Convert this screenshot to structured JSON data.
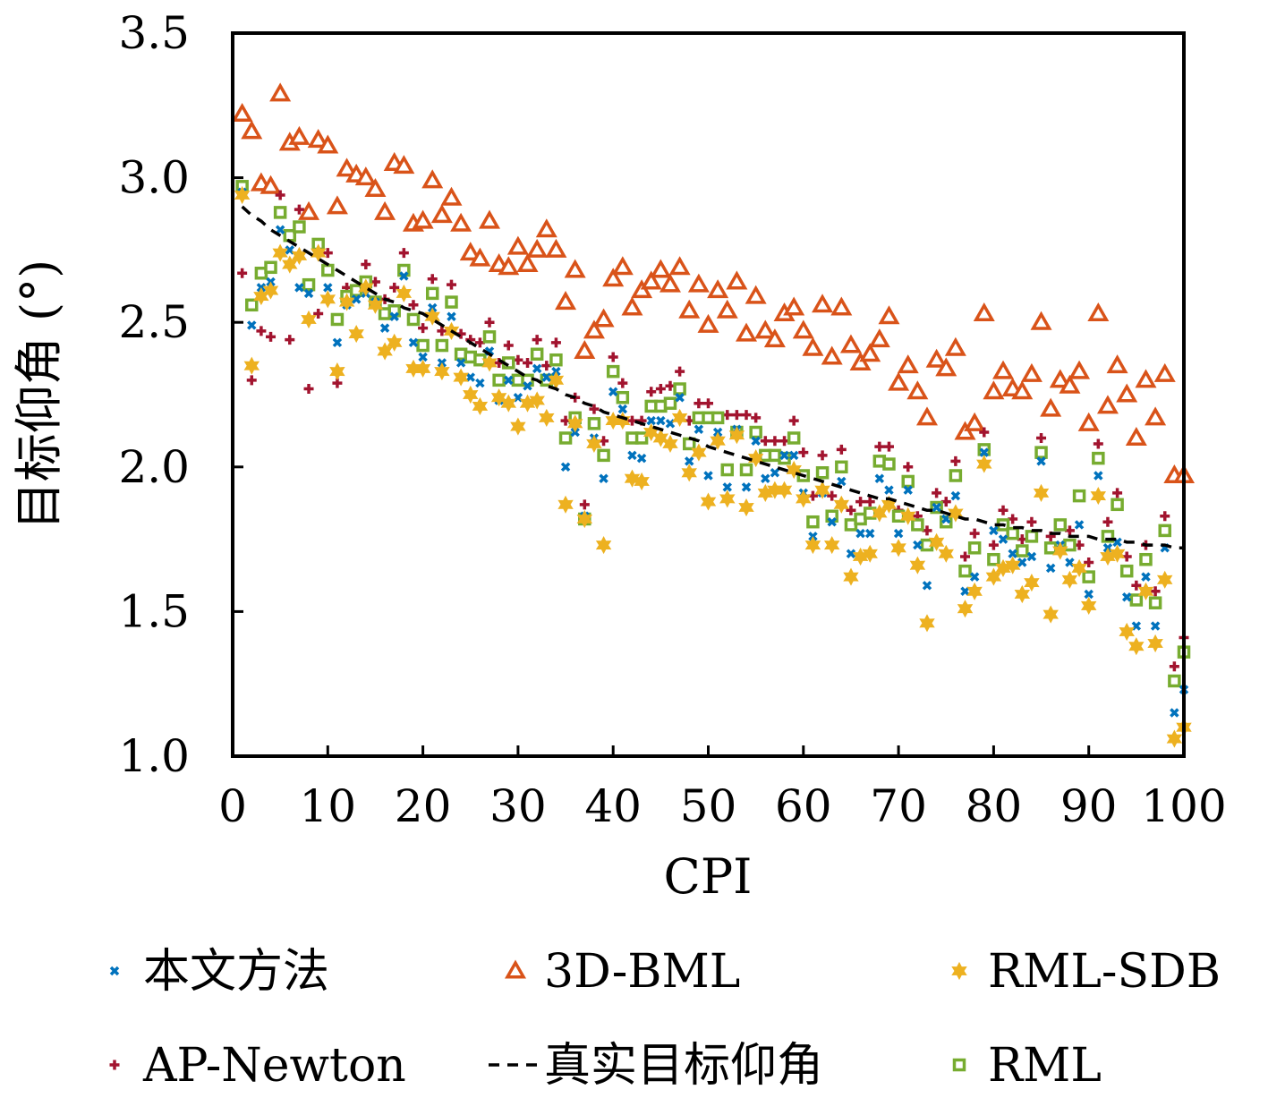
{
  "chart_data": {
    "type": "scatter",
    "title": "",
    "xlabel": "CPI",
    "ylabel": "目标仰角 (°)",
    "xlim": [
      0,
      100
    ],
    "ylim": [
      1.0,
      3.5
    ],
    "xticks": [
      0,
      10,
      20,
      30,
      40,
      50,
      60,
      70,
      80,
      90,
      100
    ],
    "xtick_labels": [
      "0",
      "10",
      "20",
      "30",
      "40",
      "50",
      "60",
      "70",
      "80",
      "90",
      "100"
    ],
    "yticks": [
      1.0,
      1.5,
      2.0,
      2.5,
      3.0,
      3.5
    ],
    "ytick_labels": [
      "1.0",
      "1.5",
      "2.0",
      "2.5",
      "3.0",
      "3.5"
    ],
    "grid": false,
    "legend_placement": "bottom",
    "series": [
      {
        "name": "本文方法",
        "marker": "x",
        "color": "#0072bd",
        "values": [
          2.95,
          2.49,
          2.62,
          2.64,
          2.82,
          2.75,
          2.62,
          2.6,
          2.74,
          2.62,
          2.43,
          2.56,
          2.58,
          2.6,
          2.57,
          2.48,
          2.52,
          2.66,
          2.43,
          2.38,
          2.55,
          2.36,
          2.52,
          2.36,
          2.31,
          2.29,
          2.4,
          2.23,
          2.3,
          2.24,
          2.28,
          2.34,
          2.31,
          2.33,
          2.0,
          2.12,
          1.83,
          2.1,
          1.96,
          2.26,
          2.2,
          2.04,
          2.03,
          2.16,
          2.16,
          2.15,
          2.24,
          2.02,
          2.13,
          1.97,
          2.12,
          1.93,
          2.13,
          1.93,
          2.09,
          1.96,
          1.98,
          2.04,
          2.04,
          1.91,
          1.76,
          1.91,
          1.81,
          1.95,
          1.7,
          1.77,
          1.77,
          1.96,
          1.92,
          1.77,
          1.92,
          1.73,
          1.59,
          1.86,
          1.82,
          1.9,
          1.57,
          1.62,
          2.05,
          1.78,
          1.75,
          1.7,
          1.67,
          1.69,
          2.02,
          1.65,
          1.73,
          1.67,
          1.8,
          1.56,
          1.97,
          1.72,
          1.74,
          1.55,
          1.45,
          1.62,
          1.45,
          1.72,
          1.15,
          1.23
        ]
      },
      {
        "name": "3D-BML",
        "marker": "triangle",
        "color": "#d95319",
        "values": [
          3.22,
          3.16,
          2.98,
          2.97,
          3.29,
          3.12,
          3.14,
          2.88,
          3.13,
          3.11,
          2.9,
          3.03,
          3.01,
          3.0,
          2.96,
          2.88,
          3.05,
          3.04,
          2.84,
          2.85,
          2.99,
          2.87,
          2.93,
          2.84,
          2.74,
          2.72,
          2.85,
          2.7,
          2.69,
          2.76,
          2.7,
          2.75,
          2.82,
          2.75,
          2.57,
          2.68,
          2.4,
          2.47,
          2.51,
          2.65,
          2.69,
          2.55,
          2.61,
          2.64,
          2.68,
          2.63,
          2.69,
          2.54,
          2.63,
          2.49,
          2.61,
          2.54,
          2.64,
          2.46,
          2.59,
          2.47,
          2.44,
          2.53,
          2.55,
          2.47,
          2.41,
          2.56,
          2.38,
          2.55,
          2.42,
          2.36,
          2.39,
          2.44,
          2.52,
          2.29,
          2.35,
          2.26,
          2.17,
          2.37,
          2.34,
          2.41,
          2.12,
          2.15,
          2.53,
          2.26,
          2.33,
          2.27,
          2.26,
          2.32,
          2.5,
          2.2,
          2.3,
          2.28,
          2.33,
          2.15,
          2.53,
          2.21,
          2.35,
          2.25,
          2.1,
          2.3,
          2.17,
          2.32,
          1.97,
          1.97
        ]
      },
      {
        "name": "RML-SDB",
        "marker": "hexagram",
        "color": "#edb120",
        "values": [
          2.94,
          2.35,
          2.59,
          2.61,
          2.74,
          2.7,
          2.73,
          2.51,
          2.74,
          2.58,
          2.33,
          2.57,
          2.46,
          2.62,
          2.56,
          2.4,
          2.43,
          2.6,
          2.34,
          2.34,
          2.52,
          2.33,
          2.47,
          2.31,
          2.25,
          2.21,
          2.36,
          2.24,
          2.22,
          2.14,
          2.22,
          2.23,
          2.17,
          2.3,
          1.87,
          2.15,
          1.82,
          2.08,
          1.73,
          2.16,
          2.16,
          1.96,
          1.95,
          2.12,
          2.1,
          2.08,
          2.17,
          1.98,
          2.05,
          1.88,
          2.09,
          1.89,
          2.11,
          1.86,
          2.03,
          1.91,
          1.92,
          1.92,
          1.99,
          1.89,
          1.73,
          1.92,
          1.73,
          1.87,
          1.62,
          1.69,
          1.7,
          1.84,
          1.87,
          1.72,
          1.83,
          1.66,
          1.46,
          1.74,
          1.7,
          1.84,
          1.51,
          1.57,
          2.01,
          1.62,
          1.65,
          1.66,
          1.56,
          1.6,
          1.91,
          1.49,
          1.71,
          1.61,
          1.65,
          1.52,
          1.9,
          1.69,
          1.7,
          1.43,
          1.38,
          1.57,
          1.39,
          1.61,
          1.06,
          1.1
        ]
      },
      {
        "name": "AP-Newton",
        "marker": "plus",
        "color": "#a2142f",
        "values": [
          2.67,
          2.3,
          2.47,
          2.45,
          2.94,
          2.44,
          2.89,
          2.27,
          2.53,
          2.74,
          2.29,
          2.62,
          2.61,
          2.7,
          2.64,
          2.58,
          2.62,
          2.74,
          2.56,
          2.48,
          2.65,
          2.47,
          2.63,
          2.46,
          2.44,
          2.43,
          2.5,
          2.36,
          2.42,
          2.37,
          2.36,
          2.44,
          2.35,
          2.43,
          2.16,
          2.24,
          1.87,
          2.2,
          2.09,
          2.38,
          2.29,
          2.16,
          2.16,
          2.26,
          2.27,
          2.28,
          2.33,
          2.16,
          2.22,
          2.22,
          2.1,
          2.18,
          2.18,
          2.18,
          2.17,
          2.09,
          2.09,
          2.09,
          2.16,
          2.05,
          1.9,
          2.04,
          1.9,
          2.06,
          1.85,
          1.88,
          1.88,
          2.07,
          2.07,
          1.85,
          2.0,
          1.83,
          1.78,
          1.91,
          1.88,
          2.02,
          1.69,
          1.77,
          2.12,
          1.73,
          1.85,
          1.82,
          1.75,
          1.81,
          2.1,
          1.76,
          1.8,
          1.78,
          1.73,
          1.67,
          2.08,
          1.81,
          1.91,
          1.69,
          1.59,
          1.73,
          1.57,
          1.83,
          1.31,
          1.41
        ]
      },
      {
        "name": "真实目标仰角",
        "marker": "dashed-line",
        "color": "#000000",
        "values": [
          2.9,
          2.87,
          2.85,
          2.82,
          2.8,
          2.78,
          2.76,
          2.74,
          2.72,
          2.7,
          2.68,
          2.66,
          2.64,
          2.62,
          2.6,
          2.58,
          2.57,
          2.55,
          2.54,
          2.53,
          2.51,
          2.49,
          2.47,
          2.45,
          2.43,
          2.41,
          2.39,
          2.37,
          2.35,
          2.33,
          2.31,
          2.3,
          2.28,
          2.27,
          2.25,
          2.24,
          2.22,
          2.21,
          2.19,
          2.18,
          2.17,
          2.16,
          2.15,
          2.14,
          2.13,
          2.12,
          2.11,
          2.1,
          2.09,
          2.07,
          2.06,
          2.05,
          2.04,
          2.03,
          2.02,
          2.01,
          2.0,
          1.99,
          1.98,
          1.97,
          1.96,
          1.95,
          1.94,
          1.93,
          1.92,
          1.91,
          1.9,
          1.89,
          1.89,
          1.88,
          1.87,
          1.86,
          1.85,
          1.85,
          1.84,
          1.83,
          1.82,
          1.82,
          1.81,
          1.8,
          1.8,
          1.79,
          1.79,
          1.78,
          1.78,
          1.77,
          1.77,
          1.76,
          1.76,
          1.76,
          1.75,
          1.75,
          1.75,
          1.74,
          1.74,
          1.73,
          1.73,
          1.73,
          1.72,
          1.72
        ]
      },
      {
        "name": "RML",
        "marker": "square",
        "color": "#77ac30",
        "values": [
          2.97,
          2.56,
          2.67,
          2.69,
          2.88,
          2.8,
          2.83,
          2.63,
          2.77,
          2.68,
          2.51,
          2.59,
          2.61,
          2.64,
          2.57,
          2.53,
          2.54,
          2.68,
          2.51,
          2.42,
          2.6,
          2.42,
          2.57,
          2.39,
          2.38,
          2.37,
          2.45,
          2.3,
          2.36,
          2.3,
          2.3,
          2.39,
          2.3,
          2.37,
          2.1,
          2.17,
          1.82,
          2.15,
          2.04,
          2.33,
          2.24,
          2.1,
          2.1,
          2.21,
          2.21,
          2.22,
          2.27,
          2.08,
          2.17,
          2.17,
          2.17,
          1.99,
          2.12,
          1.99,
          2.12,
          2.04,
          2.04,
          2.03,
          2.1,
          1.97,
          1.81,
          1.98,
          1.83,
          2.0,
          1.8,
          1.82,
          1.84,
          2.02,
          2.01,
          1.83,
          1.95,
          1.8,
          1.73,
          1.86,
          1.81,
          1.97,
          1.64,
          1.72,
          2.06,
          1.68,
          1.8,
          1.77,
          1.71,
          1.76,
          2.05,
          1.72,
          1.8,
          1.73,
          1.9,
          1.62,
          2.03,
          1.76,
          1.87,
          1.64,
          1.54,
          1.68,
          1.53,
          1.78,
          1.26,
          1.36
        ]
      }
    ]
  }
}
